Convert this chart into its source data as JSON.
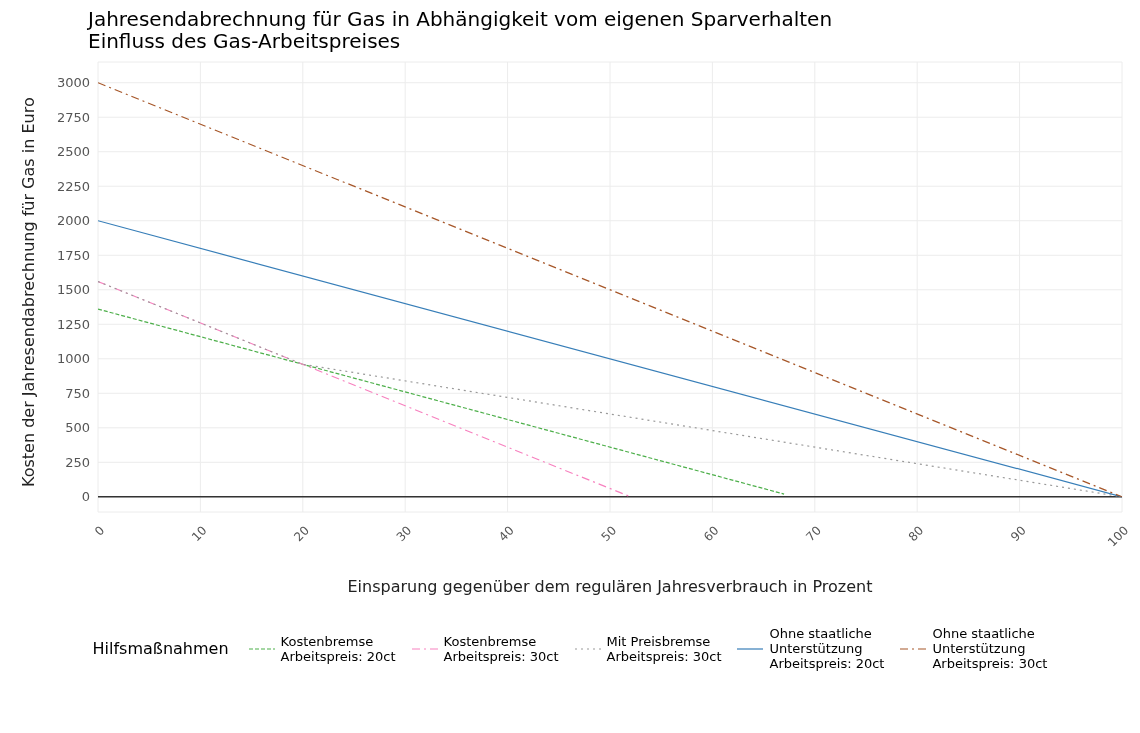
{
  "chart_data": {
    "type": "line",
    "title": "Jahresendabrechnung für Gas in Abhängigkeit vom eigenen Sparverhalten",
    "subtitle": "Einfluss des Gas-Arbeitspreises",
    "xlabel": "Einsparung gegenüber dem regulären Jahresverbrauch in Prozent",
    "ylabel": "Kosten der Jahresendabrechnung für Gas in Euro",
    "legend_title": "Hilfsmaßnahmen",
    "legend": "bottom",
    "grid": true,
    "xlim": [
      0,
      100
    ],
    "xticks": [
      0,
      10,
      20,
      30,
      40,
      50,
      60,
      70,
      80,
      90,
      100
    ],
    "ylim": [
      -110,
      3150
    ],
    "yticks": [
      0,
      250,
      500,
      750,
      1000,
      1250,
      1500,
      1750,
      2000,
      2250,
      2500,
      2750,
      3000
    ],
    "ref_lines": [
      {
        "axis": "y",
        "value": 0,
        "color": "#333333"
      }
    ],
    "series": [
      {
        "name": "Kostenbremse\nArbeitspreis: 20ct",
        "color": "#4daf4a",
        "line_style": "dashed",
        "x": [
          0,
          67
        ],
        "values": [
          1360,
          20
        ]
      },
      {
        "name": "Kostenbremse\nArbeitspreis: 30ct",
        "color": "#f781bf",
        "line_style": "dashdot",
        "x": [
          0,
          52
        ],
        "values": [
          1560,
          0
        ]
      },
      {
        "name": "Mit Preisbremse\nArbeitspreis: 30ct",
        "color": "#999999",
        "line_style": "dotted",
        "x": [
          0,
          20,
          100
        ],
        "values": [
          1560,
          960,
          0
        ]
      },
      {
        "name": "Ohne staatliche\nUnterstützung\nArbeitspreis: 20ct",
        "color": "#377eb8",
        "line_style": "solid",
        "x": [
          0,
          100
        ],
        "values": [
          2000,
          0
        ]
      },
      {
        "name": "Ohne staatliche\nUnterstützung\nArbeitspreis: 30ct",
        "color": "#a65628",
        "line_style": "dashdot",
        "x": [
          0,
          100
        ],
        "values": [
          3000,
          0
        ]
      }
    ]
  }
}
